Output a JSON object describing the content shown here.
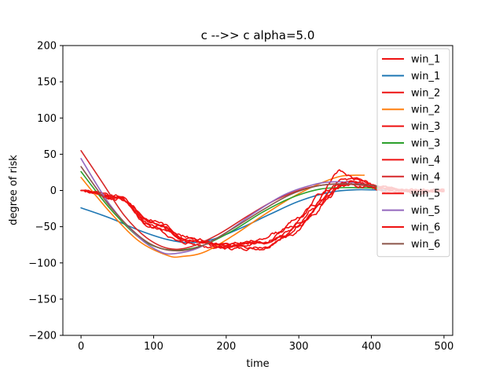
{
  "chart_data": {
    "type": "line",
    "title": "c -->> c  alpha=5.0",
    "xlabel": "time",
    "ylabel": "degree of risk",
    "xlim": [
      -25,
      512
    ],
    "ylim": [
      -200,
      200
    ],
    "xticks": [
      0,
      100,
      200,
      300,
      400,
      500
    ],
    "yticks": [
      -200,
      -150,
      -100,
      -50,
      0,
      50,
      100,
      150,
      200
    ],
    "grid": false,
    "legend_position": "top-right",
    "series": [
      {
        "name": "win_1",
        "color": "#ee1111",
        "style": "noisy",
        "points": [
          [
            0,
            0
          ],
          [
            50,
            -10
          ],
          [
            100,
            -48
          ],
          [
            150,
            -70
          ],
          [
            200,
            -75
          ],
          [
            250,
            -72
          ],
          [
            280,
            -60
          ],
          [
            300,
            -45
          ],
          [
            320,
            -25
          ],
          [
            340,
            -8
          ],
          [
            360,
            5
          ],
          [
            380,
            10
          ],
          [
            400,
            5
          ],
          [
            430,
            0
          ],
          [
            470,
            -1
          ],
          [
            500,
            0
          ]
        ]
      },
      {
        "name": "win_1",
        "color": "#1f77b4",
        "style": "smooth",
        "points": [
          [
            0,
            -24
          ],
          [
            40,
            -38
          ],
          [
            80,
            -55
          ],
          [
            120,
            -68
          ],
          [
            150,
            -72
          ],
          [
            180,
            -68
          ],
          [
            220,
            -52
          ],
          [
            260,
            -33
          ],
          [
            300,
            -15
          ],
          [
            340,
            -3
          ],
          [
            380,
            1
          ],
          [
            420,
            0
          ]
        ]
      },
      {
        "name": "win_2",
        "color": "#ee1111",
        "style": "noisy",
        "points": [
          [
            0,
            0
          ],
          [
            50,
            -12
          ],
          [
            100,
            -52
          ],
          [
            140,
            -72
          ],
          [
            180,
            -78
          ],
          [
            220,
            -77
          ],
          [
            260,
            -70
          ],
          [
            300,
            -50
          ],
          [
            330,
            -20
          ],
          [
            360,
            15
          ],
          [
            380,
            15
          ],
          [
            410,
            5
          ],
          [
            450,
            0
          ],
          [
            500,
            0
          ]
        ]
      },
      {
        "name": "win_2",
        "color": "#ff7f0e",
        "style": "smooth",
        "points": [
          [
            0,
            18
          ],
          [
            40,
            -30
          ],
          [
            80,
            -70
          ],
          [
            120,
            -90
          ],
          [
            140,
            -91
          ],
          [
            170,
            -85
          ],
          [
            210,
            -62
          ],
          [
            250,
            -35
          ],
          [
            290,
            -10
          ],
          [
            330,
            10
          ],
          [
            360,
            20
          ],
          [
            390,
            21
          ]
        ]
      },
      {
        "name": "win_3",
        "color": "#ee1111",
        "style": "noisy",
        "points": [
          [
            0,
            0
          ],
          [
            50,
            -10
          ],
          [
            100,
            -45
          ],
          [
            150,
            -68
          ],
          [
            200,
            -80
          ],
          [
            250,
            -80
          ],
          [
            280,
            -65
          ],
          [
            310,
            -40
          ],
          [
            330,
            -15
          ],
          [
            350,
            5
          ],
          [
            370,
            12
          ],
          [
            400,
            5
          ],
          [
            450,
            0
          ],
          [
            500,
            0
          ]
        ]
      },
      {
        "name": "win_3",
        "color": "#2ca02c",
        "style": "smooth",
        "points": [
          [
            0,
            26
          ],
          [
            40,
            -25
          ],
          [
            80,
            -65
          ],
          [
            110,
            -80
          ],
          [
            140,
            -82
          ],
          [
            170,
            -75
          ],
          [
            210,
            -55
          ],
          [
            250,
            -30
          ],
          [
            290,
            -10
          ],
          [
            330,
            2
          ],
          [
            370,
            4
          ],
          [
            410,
            3
          ]
        ]
      },
      {
        "name": "win_4",
        "color": "#ee1111",
        "style": "noisy",
        "points": [
          [
            0,
            0
          ],
          [
            50,
            -8
          ],
          [
            100,
            -42
          ],
          [
            150,
            -65
          ],
          [
            200,
            -75
          ],
          [
            240,
            -70
          ],
          [
            270,
            -58
          ],
          [
            300,
            -38
          ],
          [
            330,
            -5
          ],
          [
            355,
            27
          ],
          [
            380,
            15
          ],
          [
            410,
            5
          ],
          [
            450,
            0
          ],
          [
            500,
            0
          ]
        ]
      },
      {
        "name": "win_4",
        "color": "#d62728",
        "style": "smooth",
        "points": [
          [
            0,
            55
          ],
          [
            30,
            10
          ],
          [
            60,
            -35
          ],
          [
            90,
            -65
          ],
          [
            120,
            -80
          ],
          [
            150,
            -78
          ],
          [
            190,
            -60
          ],
          [
            230,
            -35
          ],
          [
            270,
            -12
          ],
          [
            310,
            3
          ],
          [
            350,
            9
          ],
          [
            390,
            7
          ]
        ]
      },
      {
        "name": "win_5",
        "color": "#ee1111",
        "style": "noisy",
        "points": [
          [
            0,
            0
          ],
          [
            50,
            -9
          ],
          [
            100,
            -45
          ],
          [
            150,
            -70
          ],
          [
            200,
            -76
          ],
          [
            250,
            -72
          ],
          [
            290,
            -50
          ],
          [
            320,
            -20
          ],
          [
            340,
            0
          ],
          [
            360,
            8
          ],
          [
            390,
            5
          ],
          [
            420,
            0
          ],
          [
            460,
            -3
          ],
          [
            500,
            -2
          ]
        ]
      },
      {
        "name": "win_5",
        "color": "#9467bd",
        "style": "smooth",
        "points": [
          [
            0,
            44
          ],
          [
            40,
            -20
          ],
          [
            80,
            -65
          ],
          [
            110,
            -85
          ],
          [
            130,
            -87
          ],
          [
            160,
            -80
          ],
          [
            200,
            -58
          ],
          [
            240,
            -30
          ],
          [
            280,
            -6
          ],
          [
            320,
            8
          ],
          [
            350,
            12
          ],
          [
            390,
            10
          ]
        ]
      },
      {
        "name": "win_6",
        "color": "#ee1111",
        "style": "noisy",
        "points": [
          [
            0,
            0
          ],
          [
            50,
            -11
          ],
          [
            100,
            -50
          ],
          [
            150,
            -70
          ],
          [
            200,
            -77
          ],
          [
            250,
            -78
          ],
          [
            290,
            -60
          ],
          [
            320,
            -35
          ],
          [
            340,
            -10
          ],
          [
            360,
            10
          ],
          [
            380,
            12
          ],
          [
            410,
            3
          ],
          [
            450,
            0
          ],
          [
            500,
            0
          ]
        ]
      },
      {
        "name": "win_6",
        "color": "#8c564b",
        "style": "smooth",
        "points": [
          [
            0,
            33
          ],
          [
            40,
            -22
          ],
          [
            80,
            -63
          ],
          [
            110,
            -80
          ],
          [
            140,
            -83
          ],
          [
            170,
            -75
          ],
          [
            210,
            -52
          ],
          [
            250,
            -27
          ],
          [
            290,
            -5
          ],
          [
            330,
            7
          ],
          [
            370,
            9
          ],
          [
            410,
            6
          ]
        ]
      }
    ]
  }
}
